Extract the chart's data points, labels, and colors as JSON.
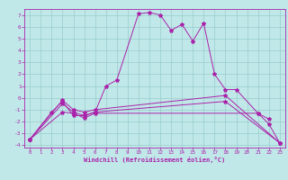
{
  "title": "",
  "xlabel": "Windchill (Refroidissement éolien,°C)",
  "ylabel": "",
  "xlim": [
    -0.5,
    23.5
  ],
  "ylim": [
    -4.2,
    7.5
  ],
  "xticks": [
    0,
    1,
    2,
    3,
    4,
    5,
    6,
    7,
    8,
    9,
    10,
    11,
    12,
    13,
    14,
    15,
    16,
    17,
    18,
    19,
    20,
    21,
    22,
    23
  ],
  "yticks": [
    -4,
    -3,
    -2,
    -1,
    0,
    1,
    2,
    3,
    4,
    5,
    6,
    7
  ],
  "background_color": "#c0e8e8",
  "line_color": "#aa22aa",
  "grid_color": "#99cccc",
  "series": [
    {
      "x": [
        0,
        2,
        3,
        4,
        5,
        6,
        7,
        8,
        10,
        11,
        12,
        13,
        14,
        15,
        16,
        17,
        18,
        19,
        21,
        22
      ],
      "y": [
        -3.5,
        -1.2,
        -0.3,
        -1.5,
        -1.5,
        -1.2,
        1.0,
        1.5,
        7.1,
        7.2,
        7.0,
        5.7,
        6.2,
        4.8,
        6.3,
        2.0,
        0.7,
        0.7,
        -1.3,
        -1.8
      ]
    },
    {
      "x": [
        0,
        3,
        4,
        5,
        6,
        21,
        22,
        23
      ],
      "y": [
        -3.5,
        -1.2,
        -1.3,
        -1.7,
        -1.3,
        -1.3,
        -2.2,
        -3.8
      ]
    },
    {
      "x": [
        0,
        3,
        4,
        5,
        6,
        18,
        23
      ],
      "y": [
        -3.5,
        -0.2,
        -1.0,
        -1.2,
        -1.0,
        0.2,
        -3.8
      ]
    },
    {
      "x": [
        0,
        3,
        4,
        5,
        6,
        18,
        23
      ],
      "y": [
        -3.5,
        -0.5,
        -1.2,
        -1.5,
        -1.2,
        -0.3,
        -3.8
      ]
    }
  ]
}
